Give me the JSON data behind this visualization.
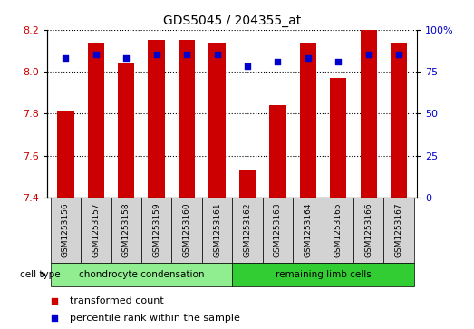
{
  "title": "GDS5045 / 204355_at",
  "samples": [
    "GSM1253156",
    "GSM1253157",
    "GSM1253158",
    "GSM1253159",
    "GSM1253160",
    "GSM1253161",
    "GSM1253162",
    "GSM1253163",
    "GSM1253164",
    "GSM1253165",
    "GSM1253166",
    "GSM1253167"
  ],
  "transformed_count": [
    7.81,
    8.14,
    8.04,
    8.15,
    8.15,
    8.14,
    7.53,
    7.84,
    8.14,
    7.97,
    8.2,
    8.14
  ],
  "percentile_rank": [
    83,
    85,
    83,
    85,
    85,
    85,
    78,
    81,
    83,
    81,
    85,
    85
  ],
  "ylim_left": [
    7.4,
    8.2
  ],
  "ylim_right": [
    0,
    100
  ],
  "yticks_left": [
    7.4,
    7.6,
    7.8,
    8.0,
    8.2
  ],
  "yticks_right": [
    0,
    25,
    50,
    75,
    100
  ],
  "bar_color": "#cc0000",
  "dot_color": "#0000cc",
  "bar_baseline": 7.4,
  "group1_label": "chondrocyte condensation",
  "group2_label": "remaining limb cells",
  "group1_indices": [
    0,
    1,
    2,
    3,
    4,
    5
  ],
  "group2_indices": [
    6,
    7,
    8,
    9,
    10,
    11
  ],
  "group1_color": "#90ee90",
  "group2_color": "#32cd32",
  "cell_type_label": "cell type",
  "legend_red_label": "transformed count",
  "legend_blue_label": "percentile rank within the sample",
  "grid_color": "#000000",
  "bar_width": 0.55,
  "sample_bg_color": "#d3d3d3",
  "figsize": [
    5.23,
    3.63
  ],
  "dpi": 100
}
